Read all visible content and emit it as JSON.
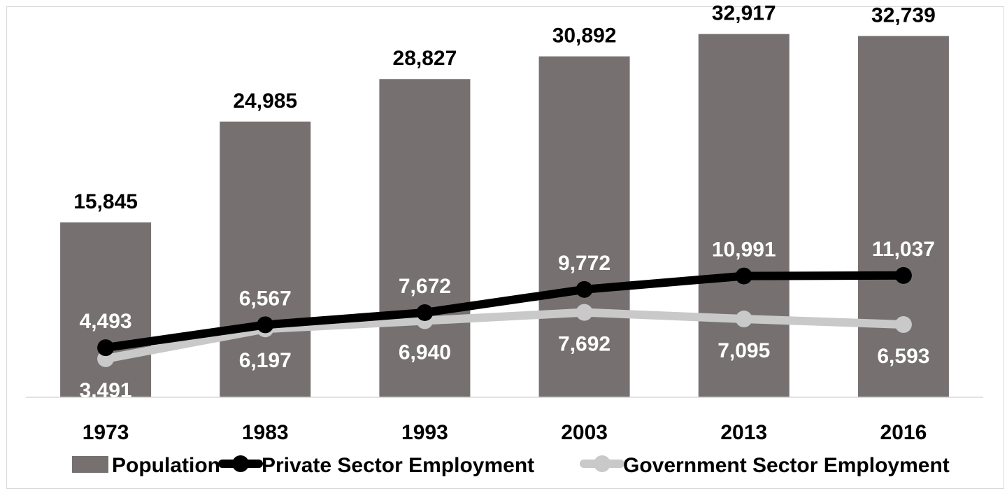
{
  "chart_data": {
    "type": "bar",
    "categories": [
      "1973",
      "1983",
      "1993",
      "2003",
      "2013",
      "2016"
    ],
    "ylim": [
      0,
      36000
    ],
    "series": [
      {
        "name": "Population",
        "kind": "bar",
        "color": "#767170",
        "values": [
          15845,
          24985,
          28827,
          30892,
          32917,
          32739
        ],
        "labels": [
          "15,845",
          "24,985",
          "28,827",
          "30,892",
          "32,917",
          "32,739"
        ]
      },
      {
        "name": "Private Sector Employment",
        "kind": "line",
        "color": "#000000",
        "values": [
          4493,
          6567,
          7672,
          9772,
          10991,
          11037
        ],
        "labels": [
          "4,493",
          "6,567",
          "7,672",
          "9,772",
          "10,991",
          "11,037"
        ]
      },
      {
        "name": "Government Sector Employment",
        "kind": "line",
        "color": "#c9c9c9",
        "values": [
          3491,
          6197,
          6940,
          7692,
          7095,
          6593
        ],
        "labels": [
          "3,491",
          "6,197",
          "6,940",
          "7,692",
          "7,095",
          "6,593"
        ]
      }
    ],
    "legend_position": "bottom",
    "grid": false
  }
}
